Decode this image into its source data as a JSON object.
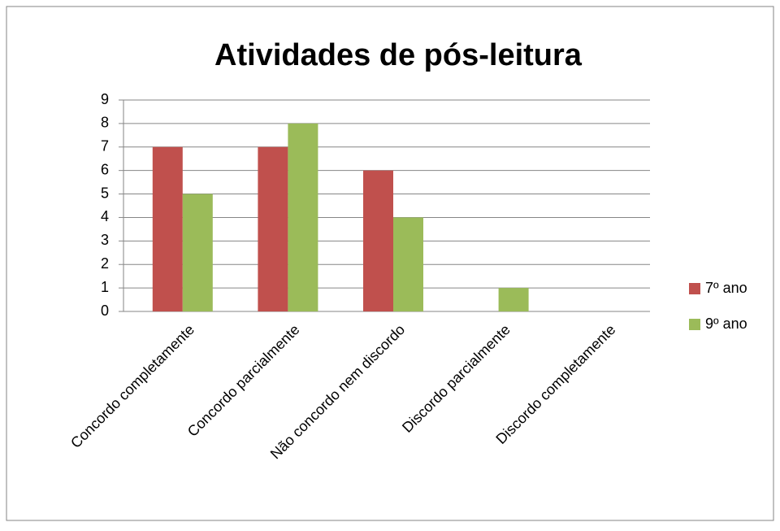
{
  "chart_data": {
    "type": "bar",
    "title": "Atividades de pós-leitura",
    "categories": [
      "Concordo completamente",
      "Concordo parcialmente",
      "Não concordo nem discordo",
      "Discordo parcialmente",
      "Discordo completamente"
    ],
    "series": [
      {
        "name": "7º ano",
        "color": "#c0504d",
        "values": [
          7,
          7,
          6,
          0,
          0
        ]
      },
      {
        "name": "9º ano",
        "color": "#9bbb59",
        "values": [
          5,
          8,
          4,
          1,
          0
        ]
      }
    ],
    "ylim": [
      0,
      9
    ],
    "yticks": [
      0,
      1,
      2,
      3,
      4,
      5,
      6,
      7,
      8,
      9
    ],
    "grid": true,
    "legend": "right"
  }
}
